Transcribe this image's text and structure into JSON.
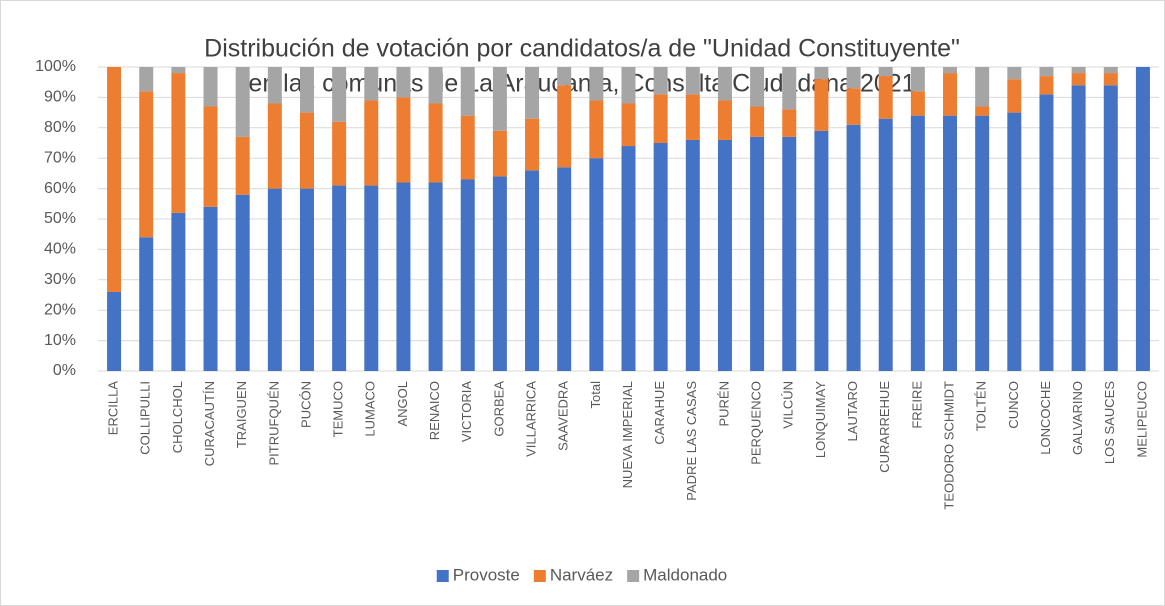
{
  "chart_data": {
    "type": "stacked_bar",
    "title": [
      "Distribución de votación por candidatos/a de \"Unidad Constituyente\"",
      "en las comunas de La Araucanía, Consulta Ciudadana 2021"
    ],
    "categories": [
      "ERCILLA",
      "COLLIPULLI",
      "CHOLCHOL",
      "CURACAUTÍN",
      "TRAIGUEN",
      "PITRUFQUÉN",
      "PUCÓN",
      "TEMUCO",
      "LUMACO",
      "ANGOL",
      "RENAICO",
      "VICTORIA",
      "GORBEA",
      "VILLARRICA",
      "SAAVEDRA",
      "Total",
      "NUEVA IMPERIAL",
      "CARAHUE",
      "PADRE LAS CASAS",
      "PURÉN",
      "PERQUENCO",
      "VILCÚN",
      "LONQUIMAY",
      "LAUTARO",
      "CURARREHUE",
      "FREIRE",
      "TEODORO SCHMIDT",
      "TOLTÉN",
      "CUNCO",
      "LONCOCHE",
      "GALVARINO",
      "LOS SAUCES",
      "MELIPEUCO"
    ],
    "series": [
      {
        "name": "Provoste",
        "color": "#4472c4",
        "values": [
          26,
          44,
          52,
          54,
          58,
          60,
          60,
          61,
          61,
          62,
          62,
          63,
          64,
          66,
          67,
          70,
          74,
          75,
          76,
          76,
          77,
          77,
          79,
          81,
          83,
          84,
          84,
          84,
          85,
          91,
          94,
          94,
          100
        ]
      },
      {
        "name": "Narváez",
        "color": "#ed7d31",
        "values": [
          74,
          48,
          46,
          33,
          19,
          28,
          25,
          21,
          28,
          28,
          26,
          21,
          15,
          17,
          27,
          19,
          14,
          16,
          15,
          13,
          10,
          9,
          17,
          12,
          14,
          8,
          14,
          3,
          11,
          6,
          4,
          4,
          0
        ]
      },
      {
        "name": "Maldonado",
        "color": "#a5a5a5",
        "values": [
          0,
          8,
          2,
          13,
          23,
          12,
          15,
          18,
          11,
          10,
          12,
          16,
          21,
          17,
          6,
          11,
          12,
          9,
          9,
          11,
          13,
          14,
          4,
          7,
          3,
          8,
          2,
          13,
          4,
          3,
          2,
          2,
          0
        ]
      }
    ],
    "ylim": [
      0,
      100
    ],
    "yticks": [
      {
        "value": 0,
        "label": "0%"
      },
      {
        "value": 10,
        "label": "10%"
      },
      {
        "value": 20,
        "label": "20%"
      },
      {
        "value": 30,
        "label": "30%"
      },
      {
        "value": 40,
        "label": "40%"
      },
      {
        "value": 50,
        "label": "50%"
      },
      {
        "value": 60,
        "label": "60%"
      },
      {
        "value": 70,
        "label": "70%"
      },
      {
        "value": 80,
        "label": "80%"
      },
      {
        "value": 90,
        "label": "90%"
      },
      {
        "value": 100,
        "label": "100%"
      }
    ],
    "grid": true,
    "legend": "bottom"
  }
}
